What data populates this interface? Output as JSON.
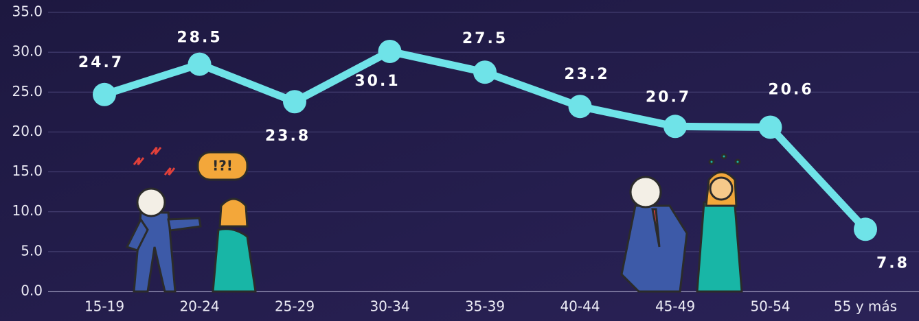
{
  "chart_data": {
    "type": "line",
    "categories": [
      "15-19",
      "20-24",
      "25-29",
      "30-34",
      "35-39",
      "40-44",
      "45-49",
      "50-54",
      "55 y más"
    ],
    "values": [
      24.7,
      28.5,
      23.8,
      30.1,
      27.5,
      23.2,
      20.7,
      20.6,
      7.8
    ],
    "color": "#6fe3e8",
    "ylim": [
      0,
      35
    ],
    "yticks": [
      {
        "value": 0,
        "label": "0.0"
      },
      {
        "value": 5,
        "label": "5.0"
      },
      {
        "value": 10,
        "label": "10.0"
      },
      {
        "value": 15,
        "label": "15.0"
      },
      {
        "value": 20,
        "label": "20.0"
      },
      {
        "value": 25,
        "label": "25.0"
      },
      {
        "value": 30,
        "label": "30.0"
      },
      {
        "value": 35,
        "label": "35.0"
      }
    ],
    "grid": true
  }
}
